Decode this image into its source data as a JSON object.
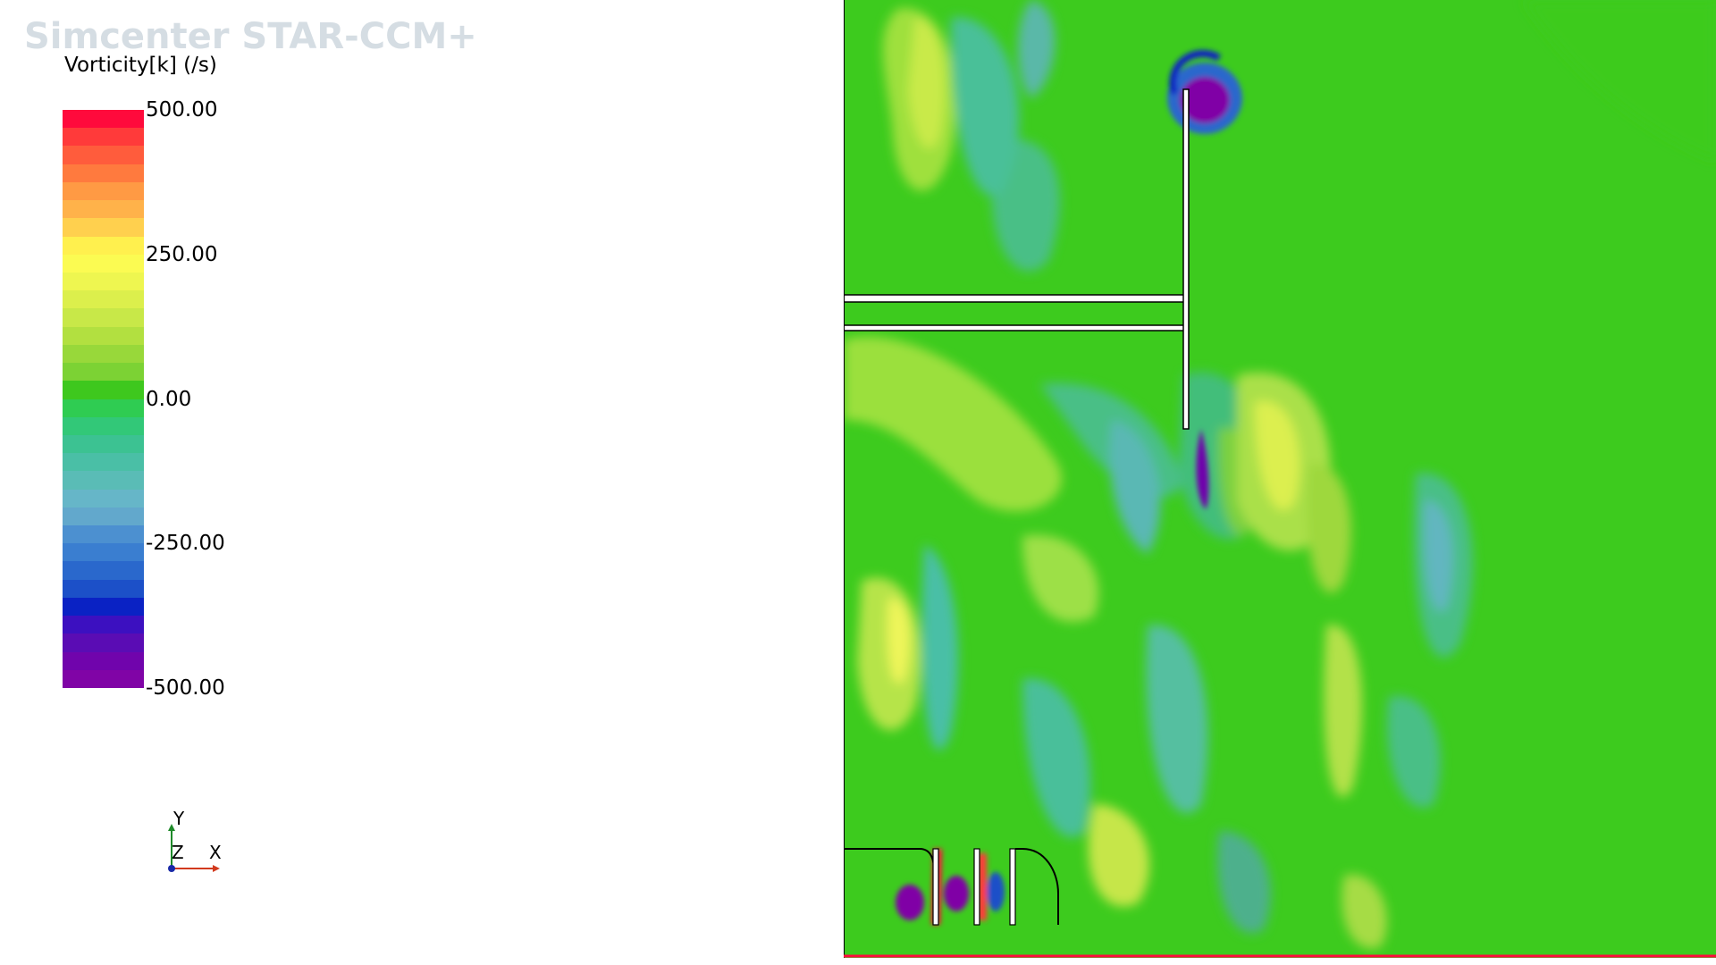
{
  "app": {
    "watermark": "Simcenter STAR-CCM+"
  },
  "legend": {
    "title": "Vorticity[k] (/s)",
    "ticks": [
      {
        "label": "500.00",
        "value": 500
      },
      {
        "label": "250.00",
        "value": 250
      },
      {
        "label": "0.00",
        "value": 0
      },
      {
        "label": "-250.00",
        "value": -250
      },
      {
        "label": "-500.00",
        "value": -500
      }
    ],
    "min": -500,
    "max": 500,
    "band_colors": [
      "#ff0a3c",
      "#ff3a3a",
      "#ff5c3c",
      "#ff7a3e",
      "#ff9a44",
      "#ffb24a",
      "#ffd04e",
      "#fff04e",
      "#fbfb52",
      "#eef650",
      "#dcef4c",
      "#c8e848",
      "#b2e040",
      "#98d83a",
      "#7cd234",
      "#3ec81e",
      "#2fcc52",
      "#32c878",
      "#3cc292",
      "#4abfa6",
      "#5abcb6",
      "#66b6c8",
      "#62a8cc",
      "#4c90d0",
      "#3a7ed0",
      "#2a68cc",
      "#1c50c8",
      "#0a22c4",
      "#3c10c0",
      "#5a0cb4",
      "#7004ac",
      "#8004a6"
    ]
  },
  "axes": {
    "y_label": "Y",
    "z_label": "Z",
    "x_label": "X",
    "x_color": "#d23a1e",
    "y_color": "#1f8a2a",
    "z_color": "#1a2aa8"
  },
  "scene": {
    "background_field_color": "#3dcb1e",
    "wall_color": "#ffffff",
    "wall_outline": "#000000"
  }
}
